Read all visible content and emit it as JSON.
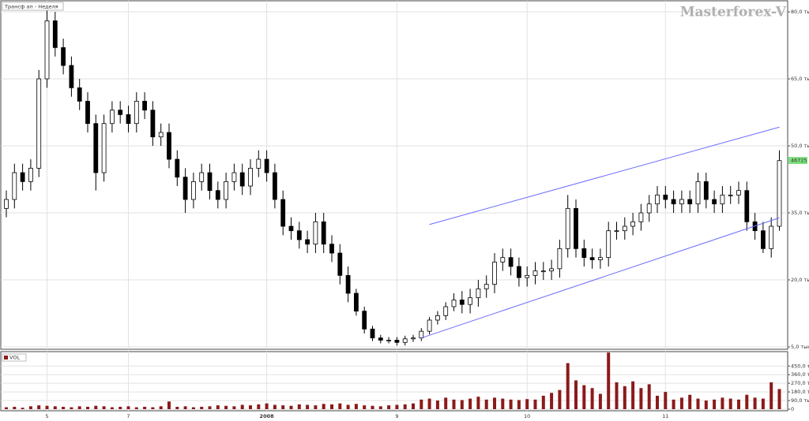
{
  "chart_data": [
    {
      "type": "candlestick",
      "legend_label": "Трансф ап - Неделя",
      "watermark": "Masterforex-V",
      "categories": [
        null,
        null,
        null,
        null,
        null,
        "5",
        null,
        null,
        null,
        null,
        null,
        null,
        null,
        null,
        null,
        "7",
        null,
        null,
        null,
        null,
        null,
        null,
        null,
        null,
        null,
        null,
        null,
        null,
        null,
        null,
        null,
        null,
        "2008",
        null,
        null,
        null,
        null,
        null,
        null,
        null,
        null,
        null,
        null,
        null,
        null,
        null,
        null,
        null,
        "9",
        null,
        null,
        null,
        null,
        null,
        null,
        null,
        null,
        null,
        null,
        null,
        null,
        null,
        null,
        null,
        "10",
        null,
        null,
        null,
        null,
        null,
        null,
        null,
        null,
        null,
        null,
        null,
        null,
        null,
        null,
        null,
        null,
        "11",
        null,
        null,
        null,
        null,
        null,
        null,
        null,
        null,
        null,
        null,
        null,
        null,
        null,
        null
      ],
      "open": [
        36,
        38,
        44,
        42,
        45,
        65,
        78,
        72,
        68,
        63,
        60,
        55,
        44,
        55,
        58,
        57,
        55,
        60,
        58,
        52,
        53,
        47,
        43,
        38,
        42,
        44,
        40,
        38,
        42,
        44,
        41,
        45,
        47,
        44,
        38,
        32,
        31,
        29,
        28,
        33,
        28,
        26,
        21,
        17,
        13,
        9,
        7,
        6.5,
        6.5,
        6,
        6.8,
        7,
        8.5,
        11,
        12,
        14,
        15.5,
        14.5,
        16,
        18,
        19,
        24,
        25,
        23,
        20.5,
        21,
        22,
        22,
        22.5,
        27,
        36,
        27,
        25,
        24.5,
        25,
        31,
        31,
        32,
        33,
        35,
        37,
        39,
        38,
        37,
        38,
        37,
        42,
        38,
        37,
        39,
        39,
        40,
        33,
        31,
        27,
        32
      ],
      "high": [
        40,
        46,
        46,
        47,
        67,
        82,
        80,
        74,
        70,
        65,
        62,
        57,
        57,
        60,
        60,
        59,
        62,
        62,
        60,
        55,
        55,
        49,
        45,
        44,
        46,
        46,
        42,
        44,
        46,
        46,
        47,
        49,
        49,
        46,
        40,
        34,
        33,
        31,
        35,
        35,
        30,
        28,
        23,
        18,
        14,
        9.7,
        7.7,
        7.2,
        7.2,
        7.5,
        7.7,
        9.2,
        11.7,
        13,
        15,
        17,
        17.5,
        18,
        20,
        21,
        26,
        27,
        27,
        25,
        23,
        24,
        24,
        24.5,
        29,
        39,
        38,
        29,
        27,
        27,
        33,
        33,
        34,
        35,
        37,
        39,
        41,
        41,
        40,
        40,
        40,
        44,
        44,
        40,
        41,
        41,
        42,
        42,
        35,
        33,
        34,
        49
      ],
      "low": [
        34,
        36,
        40,
        40,
        43,
        63,
        70,
        66,
        61,
        58,
        53,
        40,
        42,
        53,
        55,
        53,
        53,
        56,
        50,
        50,
        45,
        41,
        35,
        36,
        40,
        38,
        36,
        36,
        40,
        39,
        39,
        43,
        42,
        36,
        30,
        29,
        27,
        26,
        26,
        26,
        24,
        19,
        15,
        12,
        8,
        6.3,
        5.8,
        5.8,
        5.3,
        5.3,
        6.1,
        6.3,
        7.8,
        10,
        11,
        13,
        12.5,
        12.5,
        14,
        16,
        17,
        22,
        21,
        18.5,
        18.5,
        19,
        20,
        20,
        20.5,
        25,
        25,
        23,
        22.5,
        22.5,
        23,
        29,
        29,
        30,
        31,
        33,
        35,
        36,
        35,
        35,
        35,
        35,
        36,
        35,
        35,
        37,
        37,
        31,
        29,
        26,
        25,
        31
      ],
      "close": [
        38,
        44,
        42,
        45,
        65,
        78,
        72,
        68,
        63,
        60,
        55,
        44,
        55,
        58,
        57,
        55,
        60,
        58,
        52,
        53,
        47,
        43,
        38,
        42,
        44,
        40,
        38,
        42,
        44,
        41,
        45,
        47,
        44,
        38,
        32,
        31,
        29,
        28,
        33,
        28,
        26,
        21,
        17,
        13,
        9,
        7,
        6.5,
        6.5,
        6,
        6.8,
        7,
        8.5,
        11,
        12,
        14,
        15.5,
        14.5,
        16,
        18,
        19,
        24,
        25,
        23,
        20.5,
        21,
        22,
        22,
        22.5,
        27,
        36,
        27,
        25,
        24.5,
        25,
        31,
        31,
        32,
        33,
        35,
        37,
        39,
        38,
        37,
        38,
        37,
        42,
        38,
        37,
        39,
        39,
        40,
        33,
        31,
        27,
        32,
        46.7
      ],
      "up_color": "#ffffff",
      "down_color": "#000000",
      "ylim": [
        4.47,
        82.3
      ],
      "yticks": [
        {
          "value": 80,
          "label": "80,0 тыс."
        },
        {
          "value": 65,
          "label": "65,0 тыс."
        },
        {
          "value": 50,
          "label": "50,0 тыс."
        },
        {
          "value": 35,
          "label": "35,0 тыс."
        },
        {
          "value": 20,
          "label": "20,0 тыс."
        },
        {
          "value": 5,
          "label": "5,0 тыс."
        }
      ],
      "grid": true,
      "last_price": {
        "value": 46.725,
        "label": "46725"
      },
      "last_price_color": "#7ee07e",
      "trendline_color": "#6b6bff",
      "trendlines": [
        {
          "x": [
            52,
            95
          ],
          "y": [
            32.4,
            54.2
          ]
        },
        {
          "x": [
            51,
            95
          ],
          "y": [
            7.0,
            33.9
          ]
        }
      ]
    },
    {
      "type": "bar",
      "series": [
        {
          "name": "VOL",
          "color": "#8b1a1a",
          "values": [
            20,
            25,
            15,
            30,
            40,
            35,
            30,
            25,
            20,
            30,
            25,
            35,
            30,
            20,
            25,
            30,
            20,
            25,
            20,
            30,
            80,
            25,
            30,
            20,
            25,
            30,
            40,
            35,
            30,
            45,
            40,
            50,
            60,
            45,
            40,
            35,
            50,
            45,
            40,
            55,
            50,
            60,
            45,
            55,
            40,
            35,
            30,
            40,
            45,
            50,
            60,
            100,
            110,
            90,
            120,
            100,
            95,
            110,
            130,
            100,
            120,
            110,
            100,
            95,
            105,
            100,
            140,
            170,
            200,
            480,
            300,
            250,
            220,
            160,
            590,
            280,
            240,
            290,
            220,
            260,
            140,
            180,
            100,
            120,
            150,
            110,
            90,
            100,
            120,
            110,
            100,
            150,
            120,
            110,
            280,
            210
          ]
        }
      ],
      "ylim": [
        0,
        600
      ],
      "yticks": [
        {
          "value": 450,
          "label": "450,0 тыс."
        },
        {
          "value": 360,
          "label": "360,0 тыс."
        },
        {
          "value": 270,
          "label": "270,0 тыс."
        },
        {
          "value": 180,
          "label": "180,0 тыс."
        },
        {
          "value": 90,
          "label": "90,0 тыс."
        },
        0
      ]
    }
  ]
}
